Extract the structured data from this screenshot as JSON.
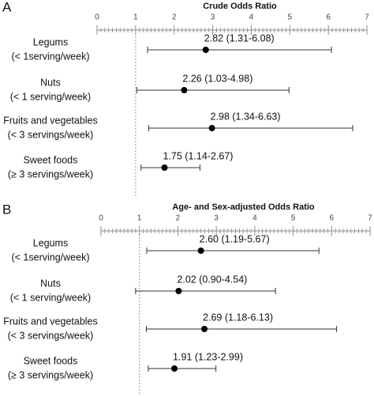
{
  "chart_data": [
    {
      "type": "forest",
      "panel": "A",
      "title": "Crude Odds Ratio",
      "categories": [
        [
          "Legums",
          "(< 1serving/week)"
        ],
        [
          "Nuts",
          "(< 1 serving/week)"
        ],
        [
          "Fruits and vegetables",
          "(< 3 servings/week)"
        ],
        [
          "Sweet foods",
          "(≥ 3 servings/week)"
        ]
      ],
      "values": [
        2.82,
        2.26,
        2.98,
        1.75
      ],
      "lower": [
        1.31,
        1.03,
        1.34,
        1.14
      ],
      "upper": [
        6.08,
        4.98,
        6.63,
        2.67
      ],
      "value_labels": [
        "2.82 (1.31-6.08)",
        "2.26 (1.03-4.98)",
        "2.98 (1.34-6.63)",
        "1.75 (1.14-2.67)"
      ],
      "xlim": [
        0,
        7
      ],
      "xticks": [
        0,
        1,
        2,
        3,
        4,
        5,
        6,
        7
      ],
      "reference": 1,
      "minor_ticks": true,
      "color": "#000000"
    },
    {
      "type": "forest",
      "panel": "B",
      "title": "Age- and Sex-adjusted Odds Ratio",
      "categories": [
        [
          "Legums",
          "(< 1serving/week)"
        ],
        [
          "Nuts",
          "(< 1 serving/week)"
        ],
        [
          "Fruits and vegetables",
          "(< 3 servings/week)"
        ],
        [
          "Sweet foods",
          "(≥ 3 servings/week)"
        ]
      ],
      "values": [
        2.6,
        2.02,
        2.69,
        1.91
      ],
      "lower": [
        1.19,
        0.9,
        1.18,
        1.23
      ],
      "upper": [
        5.67,
        4.54,
        6.13,
        2.99
      ],
      "value_labels": [
        "2.60 (1.19-5.67)",
        "2.02 (0.90-4.54)",
        "2.69 (1.18-6.13)",
        "1.91 (1.23-2.99)"
      ],
      "xlim": [
        0,
        7
      ],
      "xticks": [
        0,
        1,
        2,
        3,
        4,
        5,
        6,
        7
      ],
      "reference": 1,
      "minor_ticks": true,
      "color": "#000000"
    }
  ]
}
